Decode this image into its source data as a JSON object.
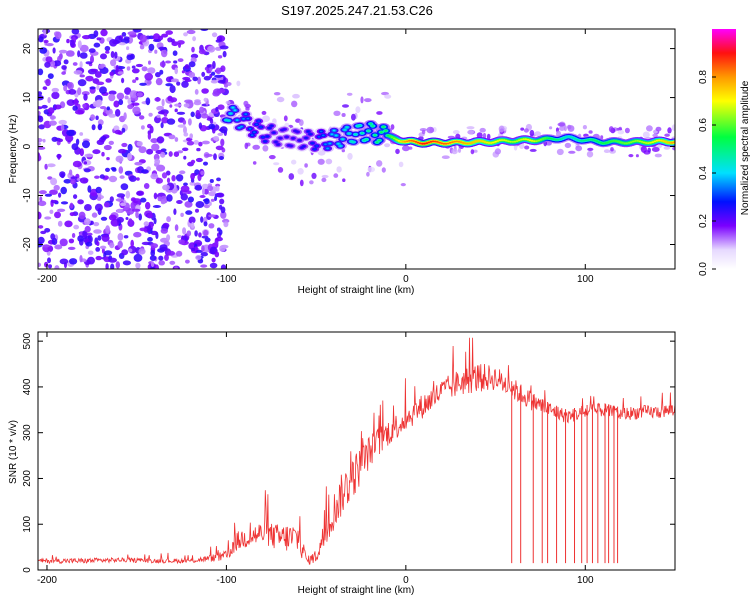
{
  "title": "S197.2025.247.21.53.C26",
  "colors": {
    "snr_line": "#ee3333",
    "background": "#ffffff"
  },
  "chart_data": [
    {
      "type": "heatmap",
      "xlabel": "Height of straight line (km)",
      "ylabel": "Frequency (Hz)",
      "xlim": [
        -205,
        150
      ],
      "ylim": [
        -25,
        24
      ],
      "xticks": [
        -200,
        -100,
        0,
        100
      ],
      "xtick_labels": [
        "-200",
        "-100",
        "0",
        "100"
      ],
      "yticks": [
        -20,
        -10,
        0,
        10,
        20
      ],
      "ytick_labels": [
        "-20",
        "-10",
        "0",
        "10",
        "20"
      ],
      "colorbar": {
        "label": "Normalized spectral amplitude",
        "range": [
          0.0,
          1.0
        ],
        "ticks": [
          0.0,
          0.2,
          0.4,
          0.6,
          0.8
        ],
        "tick_labels": [
          "0.0",
          "0.2",
          "0.4",
          "0.6",
          "0.8"
        ]
      },
      "ridge": {
        "heights": [
          -100,
          -90,
          -80,
          -70,
          -60,
          -50,
          -40,
          -30,
          -20,
          -10,
          0,
          10,
          20,
          30,
          40,
          50,
          60,
          70,
          80,
          90,
          100,
          110,
          120,
          130,
          140,
          150
        ],
        "frequency": [
          7,
          5,
          3,
          2,
          1.5,
          1.2,
          1.5,
          2.5,
          3,
          2,
          1,
          0.8,
          0.8,
          0.8,
          0.9,
          1,
          1.2,
          1.3,
          1.5,
          1.8,
          1.3,
          0.9,
          0.9,
          0.9,
          1,
          1
        ],
        "amplitude": [
          0.45,
          0.35,
          0.3,
          0.25,
          0.25,
          0.3,
          0.4,
          0.45,
          0.5,
          0.55,
          0.8,
          0.9,
          0.85,
          0.8,
          0.75,
          0.7,
          0.65,
          0.7,
          0.55,
          0.45,
          0.5,
          0.55,
          0.6,
          0.65,
          0.7,
          0.8
        ]
      },
      "noise_region_km": [
        -205,
        -100
      ],
      "noise_amplitude": [
        0.1,
        0.25
      ]
    },
    {
      "type": "line",
      "xlabel": "Height of straight line (km)",
      "ylabel": "SNR (10 * v/v)",
      "xlim": [
        -205,
        150
      ],
      "ylim": [
        0,
        520
      ],
      "xticks": [
        -200,
        -100,
        0,
        100
      ],
      "xtick_labels": [
        "-200",
        "-100",
        "0",
        "100"
      ],
      "yticks": [
        0,
        100,
        200,
        300,
        400,
        500
      ],
      "ytick_labels": [
        "0",
        "100",
        "200",
        "300",
        "400",
        "500"
      ],
      "series": [
        {
          "name": "SNR",
          "x": [
            -205,
            -180,
            -160,
            -140,
            -120,
            -110,
            -100,
            -95,
            -90,
            -80,
            -70,
            -60,
            -55,
            -50,
            -45,
            -40,
            -35,
            -30,
            -20,
            -10,
            0,
            10,
            20,
            30,
            40,
            50,
            60,
            70,
            80,
            90,
            100,
            110,
            120,
            130,
            140,
            150
          ],
          "values": [
            20,
            20,
            22,
            20,
            20,
            25,
            30,
            60,
            70,
            80,
            70,
            70,
            20,
            30,
            80,
            130,
            170,
            200,
            260,
            300,
            330,
            360,
            390,
            410,
            420,
            420,
            395,
            370,
            350,
            335,
            345,
            350,
            340,
            345,
            345,
            350
          ],
          "amplitude": [
            8,
            10,
            8,
            8,
            8,
            12,
            20,
            35,
            40,
            45,
            50,
            60,
            15,
            25,
            60,
            70,
            80,
            80,
            60,
            50,
            45,
            45,
            45,
            50,
            55,
            45,
            40,
            35,
            30,
            25,
            25,
            25,
            25,
            25,
            25,
            25
          ],
          "dropouts_km": [
            59,
            64,
            71,
            76,
            79,
            84,
            89,
            94,
            98,
            101,
            104,
            107,
            111,
            113,
            116,
            118
          ],
          "dropout_value": 15
        }
      ]
    }
  ]
}
